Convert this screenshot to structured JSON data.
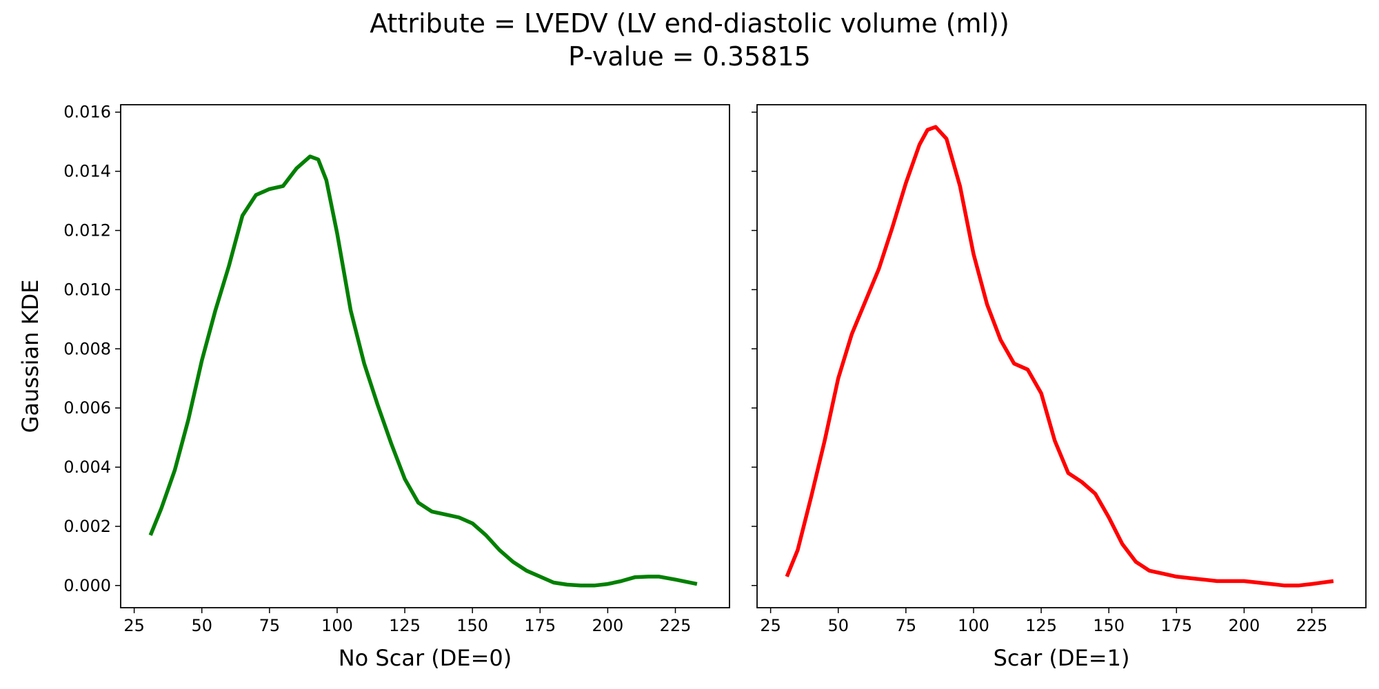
{
  "title_line1": "Attribute = LVEDV (LV end-diastolic volume (ml))",
  "title_line2": "P-value = 0.35815",
  "chart_data": [
    {
      "type": "line",
      "xlabel": "No Scar (DE=0)",
      "ylabel": "Gaussian KDE",
      "color": "#008000",
      "xlim": [
        20,
        245
      ],
      "ylim": [
        -0.00075,
        0.01625
      ],
      "xticks": [
        "25",
        "50",
        "75",
        "100",
        "125",
        "150",
        "175",
        "200",
        "225"
      ],
      "yticks": [
        "0.000",
        "0.002",
        "0.004",
        "0.006",
        "0.008",
        "0.010",
        "0.012",
        "0.014",
        "0.016"
      ],
      "series": [
        {
          "x": [
            31,
            35,
            40,
            45,
            50,
            55,
            60,
            65,
            70,
            75,
            80,
            85,
            90,
            93,
            96,
            100,
            105,
            110,
            115,
            120,
            125,
            130,
            135,
            140,
            145,
            150,
            155,
            160,
            165,
            170,
            175,
            180,
            185,
            190,
            195,
            200,
            205,
            210,
            215,
            219,
            225,
            233
          ],
          "y": [
            0.0017,
            0.0026,
            0.0039,
            0.0056,
            0.0076,
            0.0093,
            0.0108,
            0.0125,
            0.0132,
            0.0134,
            0.0135,
            0.0141,
            0.0145,
            0.0144,
            0.0137,
            0.0119,
            0.0093,
            0.0075,
            0.0061,
            0.0048,
            0.0036,
            0.0028,
            0.0025,
            0.0024,
            0.0023,
            0.0021,
            0.0017,
            0.0012,
            0.0008,
            0.0005,
            0.0003,
            0.0001,
            3e-05,
            0.0,
            0.0,
            5e-05,
            0.00015,
            0.00028,
            0.0003,
            0.0003,
            0.0002,
            5e-05
          ]
        }
      ]
    },
    {
      "type": "line",
      "xlabel": "Scar (DE=1)",
      "color": "#ff0000",
      "xlim": [
        20,
        245
      ],
      "ylim": [
        -0.00075,
        0.01625
      ],
      "xticks": [
        "25",
        "50",
        "75",
        "100",
        "125",
        "150",
        "175",
        "200",
        "225"
      ],
      "series": [
        {
          "x": [
            31,
            35,
            40,
            45,
            50,
            55,
            60,
            65,
            70,
            75,
            80,
            83,
            86,
            90,
            95,
            100,
            105,
            110,
            115,
            120,
            125,
            130,
            135,
            140,
            145,
            150,
            155,
            160,
            165,
            170,
            175,
            180,
            185,
            190,
            195,
            200,
            205,
            210,
            215,
            220,
            225,
            233
          ],
          "y": [
            0.0003,
            0.0012,
            0.003,
            0.0049,
            0.007,
            0.0085,
            0.0096,
            0.0107,
            0.0121,
            0.0136,
            0.0149,
            0.0154,
            0.0155,
            0.0151,
            0.0135,
            0.0112,
            0.0095,
            0.0083,
            0.0075,
            0.0073,
            0.0065,
            0.0049,
            0.0038,
            0.0035,
            0.0031,
            0.0023,
            0.0014,
            0.0008,
            0.0005,
            0.0004,
            0.0003,
            0.00025,
            0.0002,
            0.00015,
            0.00015,
            0.00015,
            0.0001,
            5e-05,
            0.0,
            0.0,
            5e-05,
            0.00015
          ]
        }
      ]
    }
  ]
}
